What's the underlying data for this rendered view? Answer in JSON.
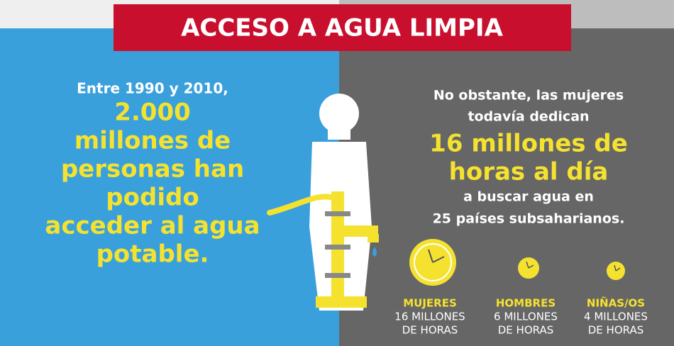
{
  "header": {
    "title": "ACCESO A AGUA LIMPIA"
  },
  "left": {
    "intro": "Entre 1990 y 2010,",
    "highlight": [
      "2.000",
      "millones de",
      "personas han",
      "podido",
      "acceder al agua",
      "potable."
    ]
  },
  "right": {
    "intro": [
      "No obstante, las mujeres",
      "todavía dedican"
    ],
    "highlight": [
      "16 millones de",
      "horas al día"
    ],
    "outro": [
      "a buscar agua en",
      "25 países subsaharianos."
    ]
  },
  "groups": [
    {
      "name": "MUJERES",
      "lines": [
        "16 MILLONES",
        "DE HORAS"
      ]
    },
    {
      "name": "HOMBRES",
      "lines": [
        "6 MILLONES",
        "DE HORAS"
      ]
    },
    {
      "name": "NIÑAS/OS",
      "lines": [
        "4 MILLONES",
        "DE HORAS"
      ]
    }
  ]
}
